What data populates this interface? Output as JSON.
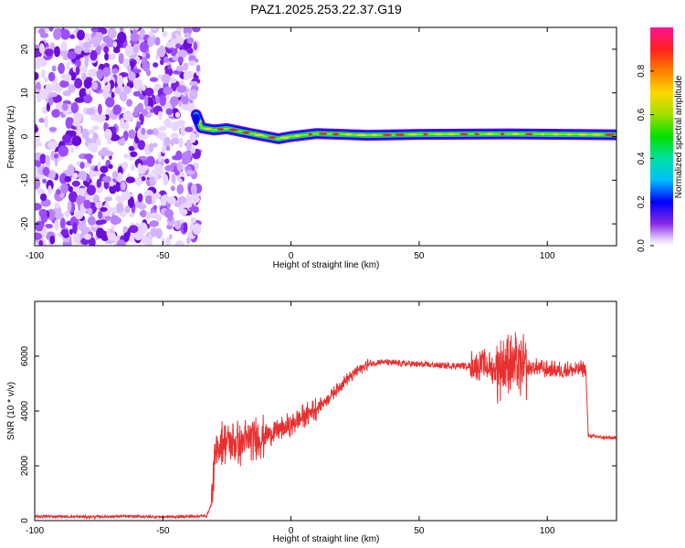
{
  "title": "PAZ1.2025.253.22.37.G19",
  "chart_data": [
    {
      "type": "heatmap",
      "xlabel": "Height of straight line (km)",
      "ylabel": "Frequency (Hz)",
      "xlim": [
        -100,
        127
      ],
      "ylim": [
        -25,
        25
      ],
      "xticks": [
        -100,
        -50,
        0,
        50,
        100
      ],
      "yticks": [
        -20,
        -10,
        0,
        10,
        20
      ],
      "noise_region_x": [
        -100,
        -36
      ],
      "ridge": [
        {
          "x": -37,
          "y": 5
        },
        {
          "x": -35,
          "y": 2
        },
        {
          "x": -30,
          "y": 1.5
        },
        {
          "x": -25,
          "y": 1.8
        },
        {
          "x": -20,
          "y": 1.2
        },
        {
          "x": -15,
          "y": 0.6
        },
        {
          "x": -5,
          "y": -0.5
        },
        {
          "x": 0,
          "y": 0
        },
        {
          "x": 10,
          "y": 0.7
        },
        {
          "x": 30,
          "y": 0.3
        },
        {
          "x": 50,
          "y": 0.5
        },
        {
          "x": 85,
          "y": 0.6
        },
        {
          "x": 127,
          "y": 0.4
        }
      ],
      "colorbar": {
        "label": "Normalized spectral amplitude",
        "range": [
          0,
          1
        ],
        "ticks": [
          0.0,
          0.2,
          0.4,
          0.6,
          0.8
        ]
      }
    },
    {
      "type": "line",
      "xlabel": "Height of straight line (km)",
      "ylabel": "SNR (10 * v/v)",
      "xlim": [
        -100,
        127
      ],
      "ylim": [
        0,
        8000
      ],
      "xticks": [
        -100,
        -50,
        0,
        50,
        100
      ],
      "yticks": [
        0,
        2000,
        4000,
        6000
      ],
      "color": "#e83030",
      "series": [
        {
          "points": [
            [
              -100,
              150
            ],
            [
              -90,
              150
            ],
            [
              -80,
              140
            ],
            [
              -70,
              150
            ],
            [
              -60,
              150
            ],
            [
              -50,
              140
            ],
            [
              -40,
              150
            ],
            [
              -33,
              170
            ],
            [
              -31,
              600
            ],
            [
              -30,
              2000
            ],
            [
              -28,
              2800
            ],
            [
              -25,
              2900
            ],
            [
              -20,
              2800
            ],
            [
              -15,
              3000
            ],
            [
              -10,
              3100
            ],
            [
              -5,
              3300
            ],
            [
              0,
              3500
            ],
            [
              5,
              3800
            ],
            [
              10,
              4100
            ],
            [
              15,
              4500
            ],
            [
              20,
              5000
            ],
            [
              25,
              5400
            ],
            [
              30,
              5700
            ],
            [
              35,
              5800
            ],
            [
              40,
              5750
            ],
            [
              50,
              5700
            ],
            [
              60,
              5650
            ],
            [
              70,
              5650
            ],
            [
              75,
              5700
            ],
            [
              80,
              5500
            ],
            [
              85,
              5800
            ],
            [
              90,
              5500
            ],
            [
              95,
              5600
            ],
            [
              100,
              5500
            ],
            [
              105,
              5500
            ],
            [
              110,
              5500
            ],
            [
              115,
              5550
            ],
            [
              116,
              3100
            ],
            [
              120,
              3050
            ],
            [
              127,
              3000
            ]
          ]
        }
      ]
    }
  ]
}
